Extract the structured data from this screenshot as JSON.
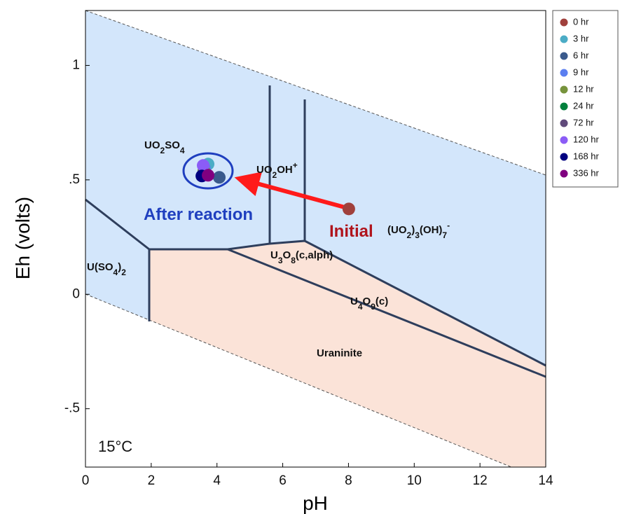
{
  "chart_data": {
    "type": "scatter",
    "x_label": "pH",
    "y_label": "Eh (volts)",
    "xlim": [
      0,
      14
    ],
    "ylim": [
      -0.755,
      1.24
    ],
    "xticks": [
      0,
      2,
      4,
      6,
      8,
      10,
      12,
      14
    ],
    "yticks": [
      {
        "value": -0.5,
        "label": "-.5"
      },
      0,
      {
        "value": 0.5,
        "label": ".5"
      },
      1
    ],
    "series": [
      {
        "name": "0 hr",
        "color": "#a0403c",
        "x": [
          8.01
        ],
        "y": [
          0.373
        ]
      },
      {
        "name": "3 hr",
        "color": "#4bacc6",
        "x": [
          3.73
        ],
        "y": [
          0.569
        ]
      },
      {
        "name": "6 hr",
        "color": "#3a5a8c",
        "x": [
          4.07
        ],
        "y": [
          0.511
        ]
      },
      {
        "name": "9 hr",
        "color": "#5b7ff0",
        "x": [
          3.62
        ],
        "y": [
          0.55
        ]
      },
      {
        "name": "12 hr",
        "color": "#77933c",
        "x": [
          3.6
        ],
        "y": [
          0.54
        ]
      },
      {
        "name": "24 hr",
        "color": "#00803c",
        "x": [
          3.6
        ],
        "y": [
          0.53
        ]
      },
      {
        "name": "72 hr",
        "color": "#604a7b",
        "x": [
          3.6
        ],
        "y": [
          0.53
        ]
      },
      {
        "name": "120 hr",
        "color": "#8b5cf6",
        "x": [
          3.58
        ],
        "y": [
          0.563
        ]
      },
      {
        "name": "168 hr",
        "color": "#000080",
        "x": [
          3.54
        ],
        "y": [
          0.517
        ]
      },
      {
        "name": "336 hr",
        "color": "#800080",
        "x": [
          3.73
        ],
        "y": [
          0.52
        ]
      }
    ],
    "annotations": [
      "UO2SO4",
      "UO2OH+",
      "(UO2)3(OH)7-",
      "U(SO4)2",
      "U3O8(c,alph)",
      "U4O9(c)",
      "Uraninite",
      "After reaction",
      "Initial",
      "15°C"
    ]
  }
}
